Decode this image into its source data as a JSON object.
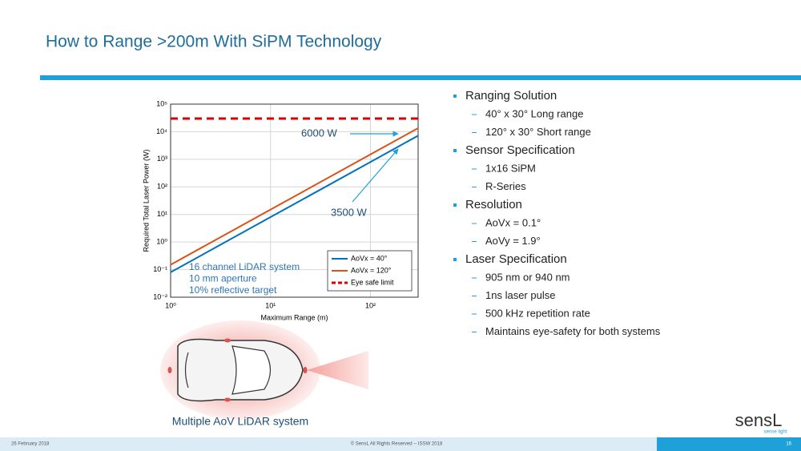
{
  "slide": {
    "title": "How to Range >200m With SiPM Technology",
    "sections": [
      {
        "title": "Ranging Solution",
        "items": [
          "40° x 30° Long range",
          "120° x 30° Short range"
        ]
      },
      {
        "title": "Sensor Specification",
        "items": [
          "1x16 SiPM",
          "R-Series"
        ]
      },
      {
        "title": "Resolution",
        "items": [
          "AoVx = 0.1°",
          "AoVy = 1.9°"
        ]
      },
      {
        "title": "Laser Specification",
        "items": [
          "905 nm or 940 nm",
          "1ns laser pulse",
          "500 kHz repetition rate",
          "Maintains eye-safety for both systems"
        ]
      }
    ],
    "figure_caption": "Multiple AoV LiDAR system",
    "footer_date": "26 February 2018",
    "footer_copyright": "© SensL All Rights Reserved -- ISSW 2018",
    "page_number": "16",
    "logo": "sensL",
    "logo_tagline": "sense light"
  },
  "chart_data": {
    "type": "line",
    "xlabel": "Maximum Range (m)",
    "ylabel": "Required Total Laser Power (W)",
    "x": [
      1,
      10,
      100,
      300
    ],
    "series": [
      {
        "name": "AoVx = 40°",
        "color": "#0072bd",
        "values": [
          0.08,
          8,
          800,
          7200
        ]
      },
      {
        "name": "AoVx = 120°",
        "color": "#d95319",
        "values": [
          0.15,
          15,
          1500,
          13500
        ]
      },
      {
        "name": "Eye safe limit",
        "color": "#e00000",
        "dashed": true,
        "values": [
          30000,
          30000,
          30000,
          30000
        ]
      }
    ],
    "xlim": [
      1,
      300
    ],
    "ylim": [
      0.01,
      100000
    ],
    "xscale": "log",
    "yscale": "log",
    "xticks": [
      {
        "value": 1,
        "label": "10⁰"
      },
      {
        "value": 10,
        "label": "10¹"
      },
      {
        "value": 100,
        "label": "10²"
      }
    ],
    "yticks": [
      {
        "value": 0.01,
        "label": "10⁻²"
      },
      {
        "value": 0.1,
        "label": "10⁻¹"
      },
      {
        "value": 1,
        "label": "10⁰"
      },
      {
        "value": 10,
        "label": "10¹"
      },
      {
        "value": 100,
        "label": "10²"
      },
      {
        "value": 1000,
        "label": "10³"
      },
      {
        "value": 10000,
        "label": "10⁴"
      },
      {
        "value": 100000,
        "label": "10⁵"
      }
    ],
    "grid": true,
    "legend": "lower right",
    "annotations": [
      "6000 W",
      "3500 W"
    ],
    "text_box": [
      "16 channel LiDAR system",
      "10 mm aperture",
      "10% reflective target"
    ]
  }
}
